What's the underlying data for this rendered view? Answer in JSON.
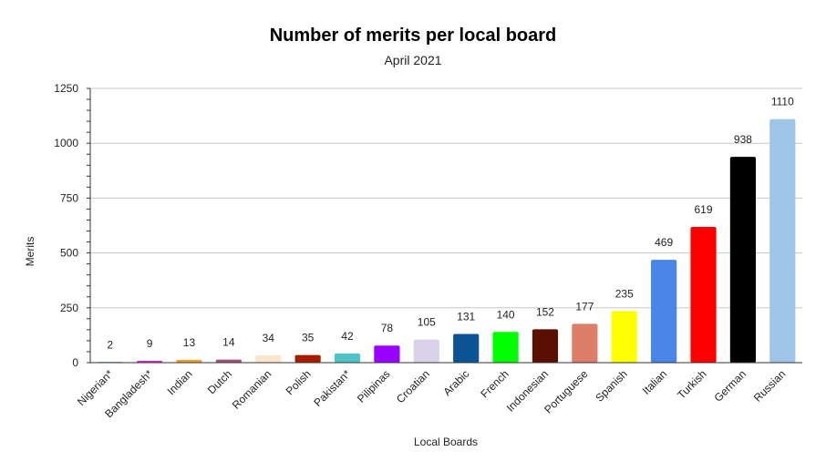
{
  "chart_data": {
    "type": "bar",
    "title": "Number of merits per local board",
    "subtitle": "April 2021",
    "xlabel": "Local Boards",
    "ylabel": "Merits",
    "ylim": [
      0,
      1250
    ],
    "yticks": [
      0,
      250,
      500,
      750,
      1000,
      1250
    ],
    "grid": true,
    "legend": "none",
    "categories": [
      "Nigerian*",
      "Bangladesh*",
      "Indian",
      "Dutch",
      "Romanian",
      "Polish",
      "Pakistan*",
      "Pilipinas",
      "Croatian",
      "Arabic",
      "French",
      "Indonesian",
      "Portuguese",
      "Spanish",
      "Italian",
      "Turkish",
      "German",
      "Russian"
    ],
    "values": [
      2,
      9,
      13,
      14,
      34,
      35,
      42,
      78,
      105,
      131,
      140,
      152,
      177,
      235,
      469,
      619,
      938,
      1110
    ],
    "data_labels": [
      "2",
      "9",
      "13",
      "14",
      "34",
      "35",
      "42",
      "78",
      "105",
      "131",
      "140",
      "152",
      "177",
      "235",
      "469",
      "619",
      "938",
      "1110"
    ],
    "colors": [
      "#9fc5e8",
      "#cc33cc",
      "#f0a030",
      "#a64d79",
      "#fce5cd",
      "#a61c00",
      "#4fc3c9",
      "#9900ff",
      "#d9d2e9",
      "#0b5394",
      "#00ff00",
      "#5b0f00",
      "#dd7e6b",
      "#ffff00",
      "#4a86e8",
      "#ff0000",
      "#000000",
      "#9fc5e8"
    ]
  }
}
